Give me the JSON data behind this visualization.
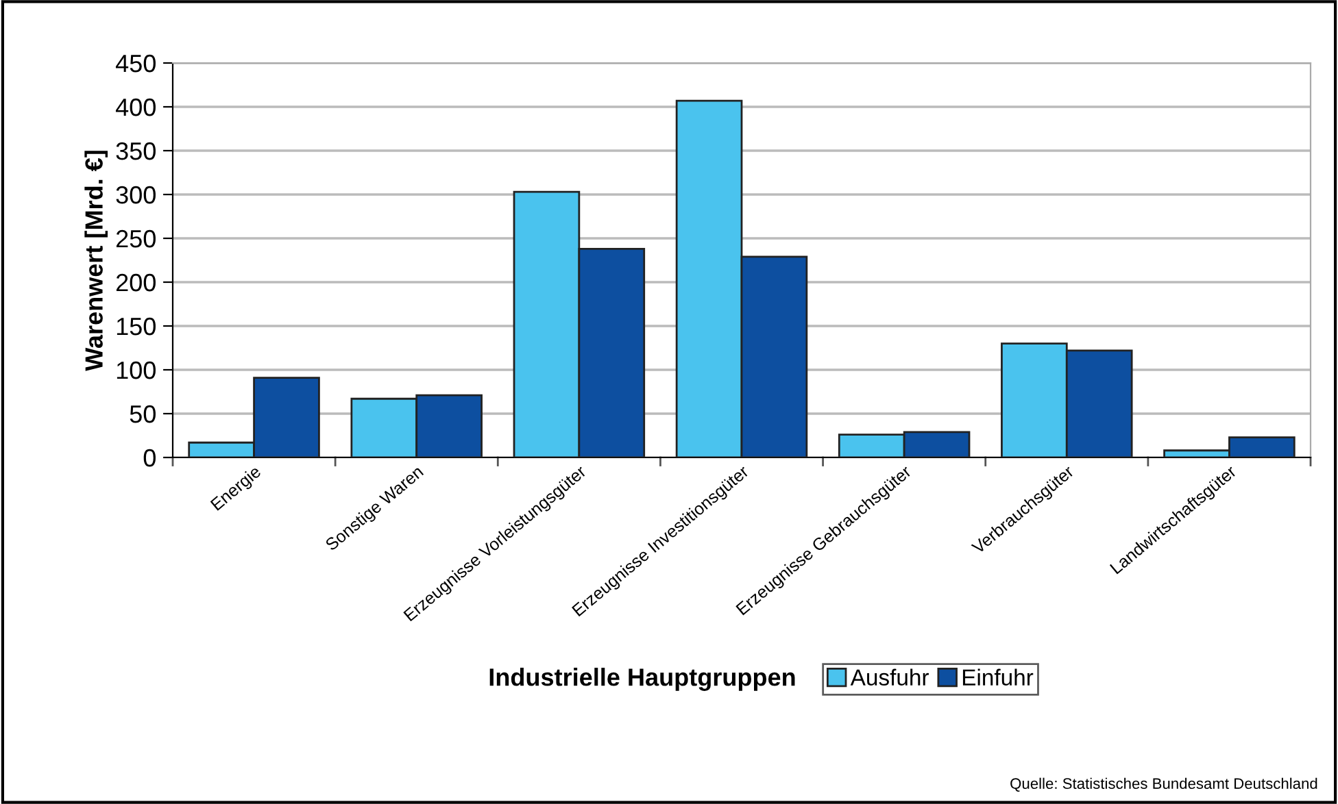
{
  "chart_data": {
    "type": "bar",
    "xlabel": "Industrielle Hauptgruppen",
    "ylabel": "Warenwert [Mrd. €]",
    "categories": [
      "Energie",
      "Sonstige Waren",
      "Erzeugnisse Vorleistungsgüter",
      "Erzeugnisse Investitionsgüter",
      "Erzeugnisse Gebrauchsgüter",
      "Verbrauchsgüter",
      "Landwirtschaftsgüter"
    ],
    "series": [
      {
        "name": "Ausfuhr",
        "color": "#4ac3ee",
        "values": [
          17,
          67,
          303,
          407,
          26,
          130,
          8
        ]
      },
      {
        "name": "Einfuhr",
        "color": "#0d4fa0",
        "values": [
          91,
          71,
          238,
          229,
          29,
          122,
          23
        ]
      }
    ],
    "ylim": [
      0,
      450
    ],
    "yticks": [
      0,
      50,
      100,
      150,
      200,
      250,
      300,
      350,
      400,
      450
    ],
    "grid": "y",
    "legend": "bottom",
    "annotations": [
      "Quelle: Statistisches Bundesamt Deutschland"
    ]
  }
}
